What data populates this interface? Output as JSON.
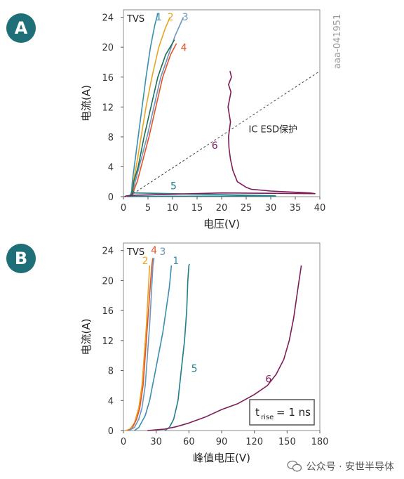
{
  "badges": {
    "a": "A",
    "b": "B"
  },
  "figure_id": "aaa-041951",
  "watermark": "公众号 · 安世半导体",
  "chart_data": [
    {
      "id": "A",
      "type": "line",
      "title": "",
      "xlabel": "电压(V)",
      "ylabel": "电流(A)",
      "xlim": [
        0,
        40
      ],
      "ylim": [
        0,
        25
      ],
      "xticks": [
        0,
        5,
        10,
        15,
        20,
        25,
        30,
        35,
        40
      ],
      "yticks": [
        0,
        4,
        8,
        12,
        16,
        20,
        24
      ],
      "grid": false,
      "corner_label": "TVS",
      "annotation_text": "IC ESD保护",
      "annotation_line": {
        "from": [
          2,
          0.4
        ],
        "to": [
          40,
          16.8
        ],
        "style": "dashed"
      },
      "series": [
        {
          "name": "1",
          "color": "#3a8fb0",
          "label_at": [
            7.2,
            23.6
          ],
          "points": [
            [
              1.6,
              0
            ],
            [
              1.8,
              2
            ],
            [
              2.2,
              4
            ],
            [
              3,
              8
            ],
            [
              3.8,
              12
            ],
            [
              4.6,
              16
            ],
            [
              5.5,
              20
            ],
            [
              6.4,
              23
            ],
            [
              7,
              24.5
            ]
          ]
        },
        {
          "name": "2",
          "color": "#e8a524",
          "label_at": [
            9.6,
            23.6
          ],
          "points": [
            [
              1.7,
              0
            ],
            [
              2,
              2
            ],
            [
              2.6,
              4
            ],
            [
              3.6,
              8
            ],
            [
              4.6,
              12
            ],
            [
              5.8,
              16
            ],
            [
              7.2,
              20
            ],
            [
              8.5,
              22.5
            ],
            [
              9.5,
              24
            ]
          ]
        },
        {
          "name": "3",
          "color": "#6b96b9",
          "label_at": [
            12.6,
            23.6
          ],
          "points": [
            [
              1.7,
              0
            ],
            [
              2,
              1
            ],
            [
              2.4,
              2
            ],
            [
              3.2,
              4
            ],
            [
              4.8,
              8
            ],
            [
              6.2,
              12
            ],
            [
              7.6,
              16
            ],
            [
              9.2,
              19
            ],
            [
              10.5,
              21.5
            ],
            [
              12.2,
              24
            ]
          ]
        },
        {
          "name": "4",
          "color": "#e2542f",
          "label_at": [
            12.3,
            19.5
          ],
          "points": [
            [
              1.8,
              0
            ],
            [
              2.2,
              1
            ],
            [
              2.8,
              2
            ],
            [
              3.6,
              4
            ],
            [
              5.2,
              8
            ],
            [
              6.6,
              12
            ],
            [
              8,
              16
            ],
            [
              9.6,
              19
            ],
            [
              10.8,
              20.5
            ]
          ]
        },
        {
          "name": "",
          "color": "#1e6e57",
          "points": [
            [
              1.7,
              0
            ],
            [
              2.1,
              2
            ],
            [
              3,
              4
            ],
            [
              4.2,
              8
            ],
            [
              5.6,
              12
            ],
            [
              7,
              16
            ],
            [
              8.6,
              19
            ],
            [
              10.4,
              21
            ]
          ]
        },
        {
          "name": "5",
          "color": "#1f7d86",
          "label_at": [
            10.2,
            1.0
          ],
          "points": [
            [
              0.2,
              0
            ],
            [
              1.4,
              0.2
            ],
            [
              1.8,
              0.8
            ],
            [
              2.3,
              0.5
            ],
            [
              30.5,
              0.12
            ],
            [
              31,
              0.08
            ],
            [
              3,
              0.04
            ],
            [
              0.8,
              0.02
            ]
          ]
        },
        {
          "name": "6",
          "color": "#7d1d5a",
          "label_at": [
            18.6,
            6.4
          ],
          "points": [
            [
              0.2,
              0
            ],
            [
              0.6,
              0.1
            ],
            [
              2.5,
              0.2
            ],
            [
              20,
              0.5
            ],
            [
              39,
              0.4
            ],
            [
              38,
              0.5
            ],
            [
              30,
              0.75
            ],
            [
              26,
              1.0
            ],
            [
              25,
              1.25
            ],
            [
              23.2,
              2
            ],
            [
              22.3,
              3.5
            ],
            [
              21.8,
              5
            ],
            [
              21.5,
              6.5
            ],
            [
              21.4,
              8
            ],
            [
              21.8,
              10
            ],
            [
              21.3,
              12
            ],
            [
              21.9,
              14
            ],
            [
              21.4,
              15
            ],
            [
              22,
              16
            ],
            [
              21.7,
              16.8
            ]
          ]
        }
      ]
    },
    {
      "id": "B",
      "type": "line",
      "title": "",
      "xlabel": "峰值电压(V)",
      "ylabel": "电流(A)",
      "xlim": [
        0,
        180
      ],
      "ylim": [
        0,
        25
      ],
      "xticks": [
        0,
        30,
        60,
        90,
        120,
        150,
        180
      ],
      "yticks": [
        0,
        4,
        8,
        12,
        16,
        20,
        24
      ],
      "grid": false,
      "corner_label": "TVS",
      "trise_box": {
        "var": "t",
        "sub": "rise",
        "value": "= 1 ns"
      },
      "series": [
        {
          "name": "2",
          "color": "#e8a524",
          "label_at": [
            20,
            22.2
          ],
          "points": [
            [
              2,
              0
            ],
            [
              6,
              0.2
            ],
            [
              10,
              1
            ],
            [
              14,
              3
            ],
            [
              17,
              6
            ],
            [
              19,
              10
            ],
            [
              21,
              14
            ],
            [
              22.5,
              18
            ],
            [
              24,
              22
            ]
          ]
        },
        {
          "name": "4",
          "color": "#e2542f",
          "label_at": [
            28,
            23.6
          ],
          "points": [
            [
              4,
              0
            ],
            [
              8,
              0.3
            ],
            [
              12,
              1.5
            ],
            [
              15,
              3
            ],
            [
              18,
              6
            ],
            [
              20,
              10
            ],
            [
              22,
              14
            ],
            [
              24,
              18
            ],
            [
              26,
              22
            ],
            [
              27,
              23
            ]
          ]
        },
        {
          "name": "3",
          "color": "#6b96b9",
          "label_at": [
            36,
            23.4
          ],
          "points": [
            [
              5,
              0
            ],
            [
              10,
              0.4
            ],
            [
              14,
              1.5
            ],
            [
              17,
              3
            ],
            [
              20,
              6
            ],
            [
              22,
              10
            ],
            [
              24,
              14
            ],
            [
              25.5,
              18
            ],
            [
              27,
              22
            ],
            [
              28,
              23
            ]
          ]
        },
        {
          "name": "1",
          "color": "#3a8fb0",
          "label_at": [
            48,
            22.2
          ],
          "points": [
            [
              10,
              0
            ],
            [
              14,
              0.4
            ],
            [
              20,
              2
            ],
            [
              24,
              4
            ],
            [
              28,
              7
            ],
            [
              32,
              10
            ],
            [
              36,
              13
            ],
            [
              39,
              16
            ],
            [
              42,
              19
            ],
            [
              44,
              22
            ]
          ]
        },
        {
          "name": "5",
          "color": "#1f7d86",
          "label_at": [
            65,
            7.8
          ],
          "points": [
            [
              38,
              0
            ],
            [
              42,
              0.4
            ],
            [
              46,
              1.5
            ],
            [
              50,
              4
            ],
            [
              53,
              8
            ],
            [
              56,
              12
            ],
            [
              58,
              16
            ],
            [
              59,
              20
            ],
            [
              60,
              22
            ],
            [
              60.5,
              22.2
            ]
          ]
        },
        {
          "name": "6",
          "color": "#7d1d5a",
          "label_at": [
            133,
            6.4
          ],
          "points": [
            [
              22,
              0
            ],
            [
              38,
              0.2
            ],
            [
              48,
              0.5
            ],
            [
              60,
              1.0
            ],
            [
              75,
              1.8
            ],
            [
              90,
              2.8
            ],
            [
              105,
              3.6
            ],
            [
              120,
              4.8
            ],
            [
              132,
              6
            ],
            [
              140,
              7.5
            ],
            [
              147,
              9.5
            ],
            [
              152,
              12
            ],
            [
              156,
              15
            ],
            [
              159,
              18
            ],
            [
              161,
              20
            ],
            [
              163,
              22
            ]
          ]
        }
      ]
    }
  ]
}
